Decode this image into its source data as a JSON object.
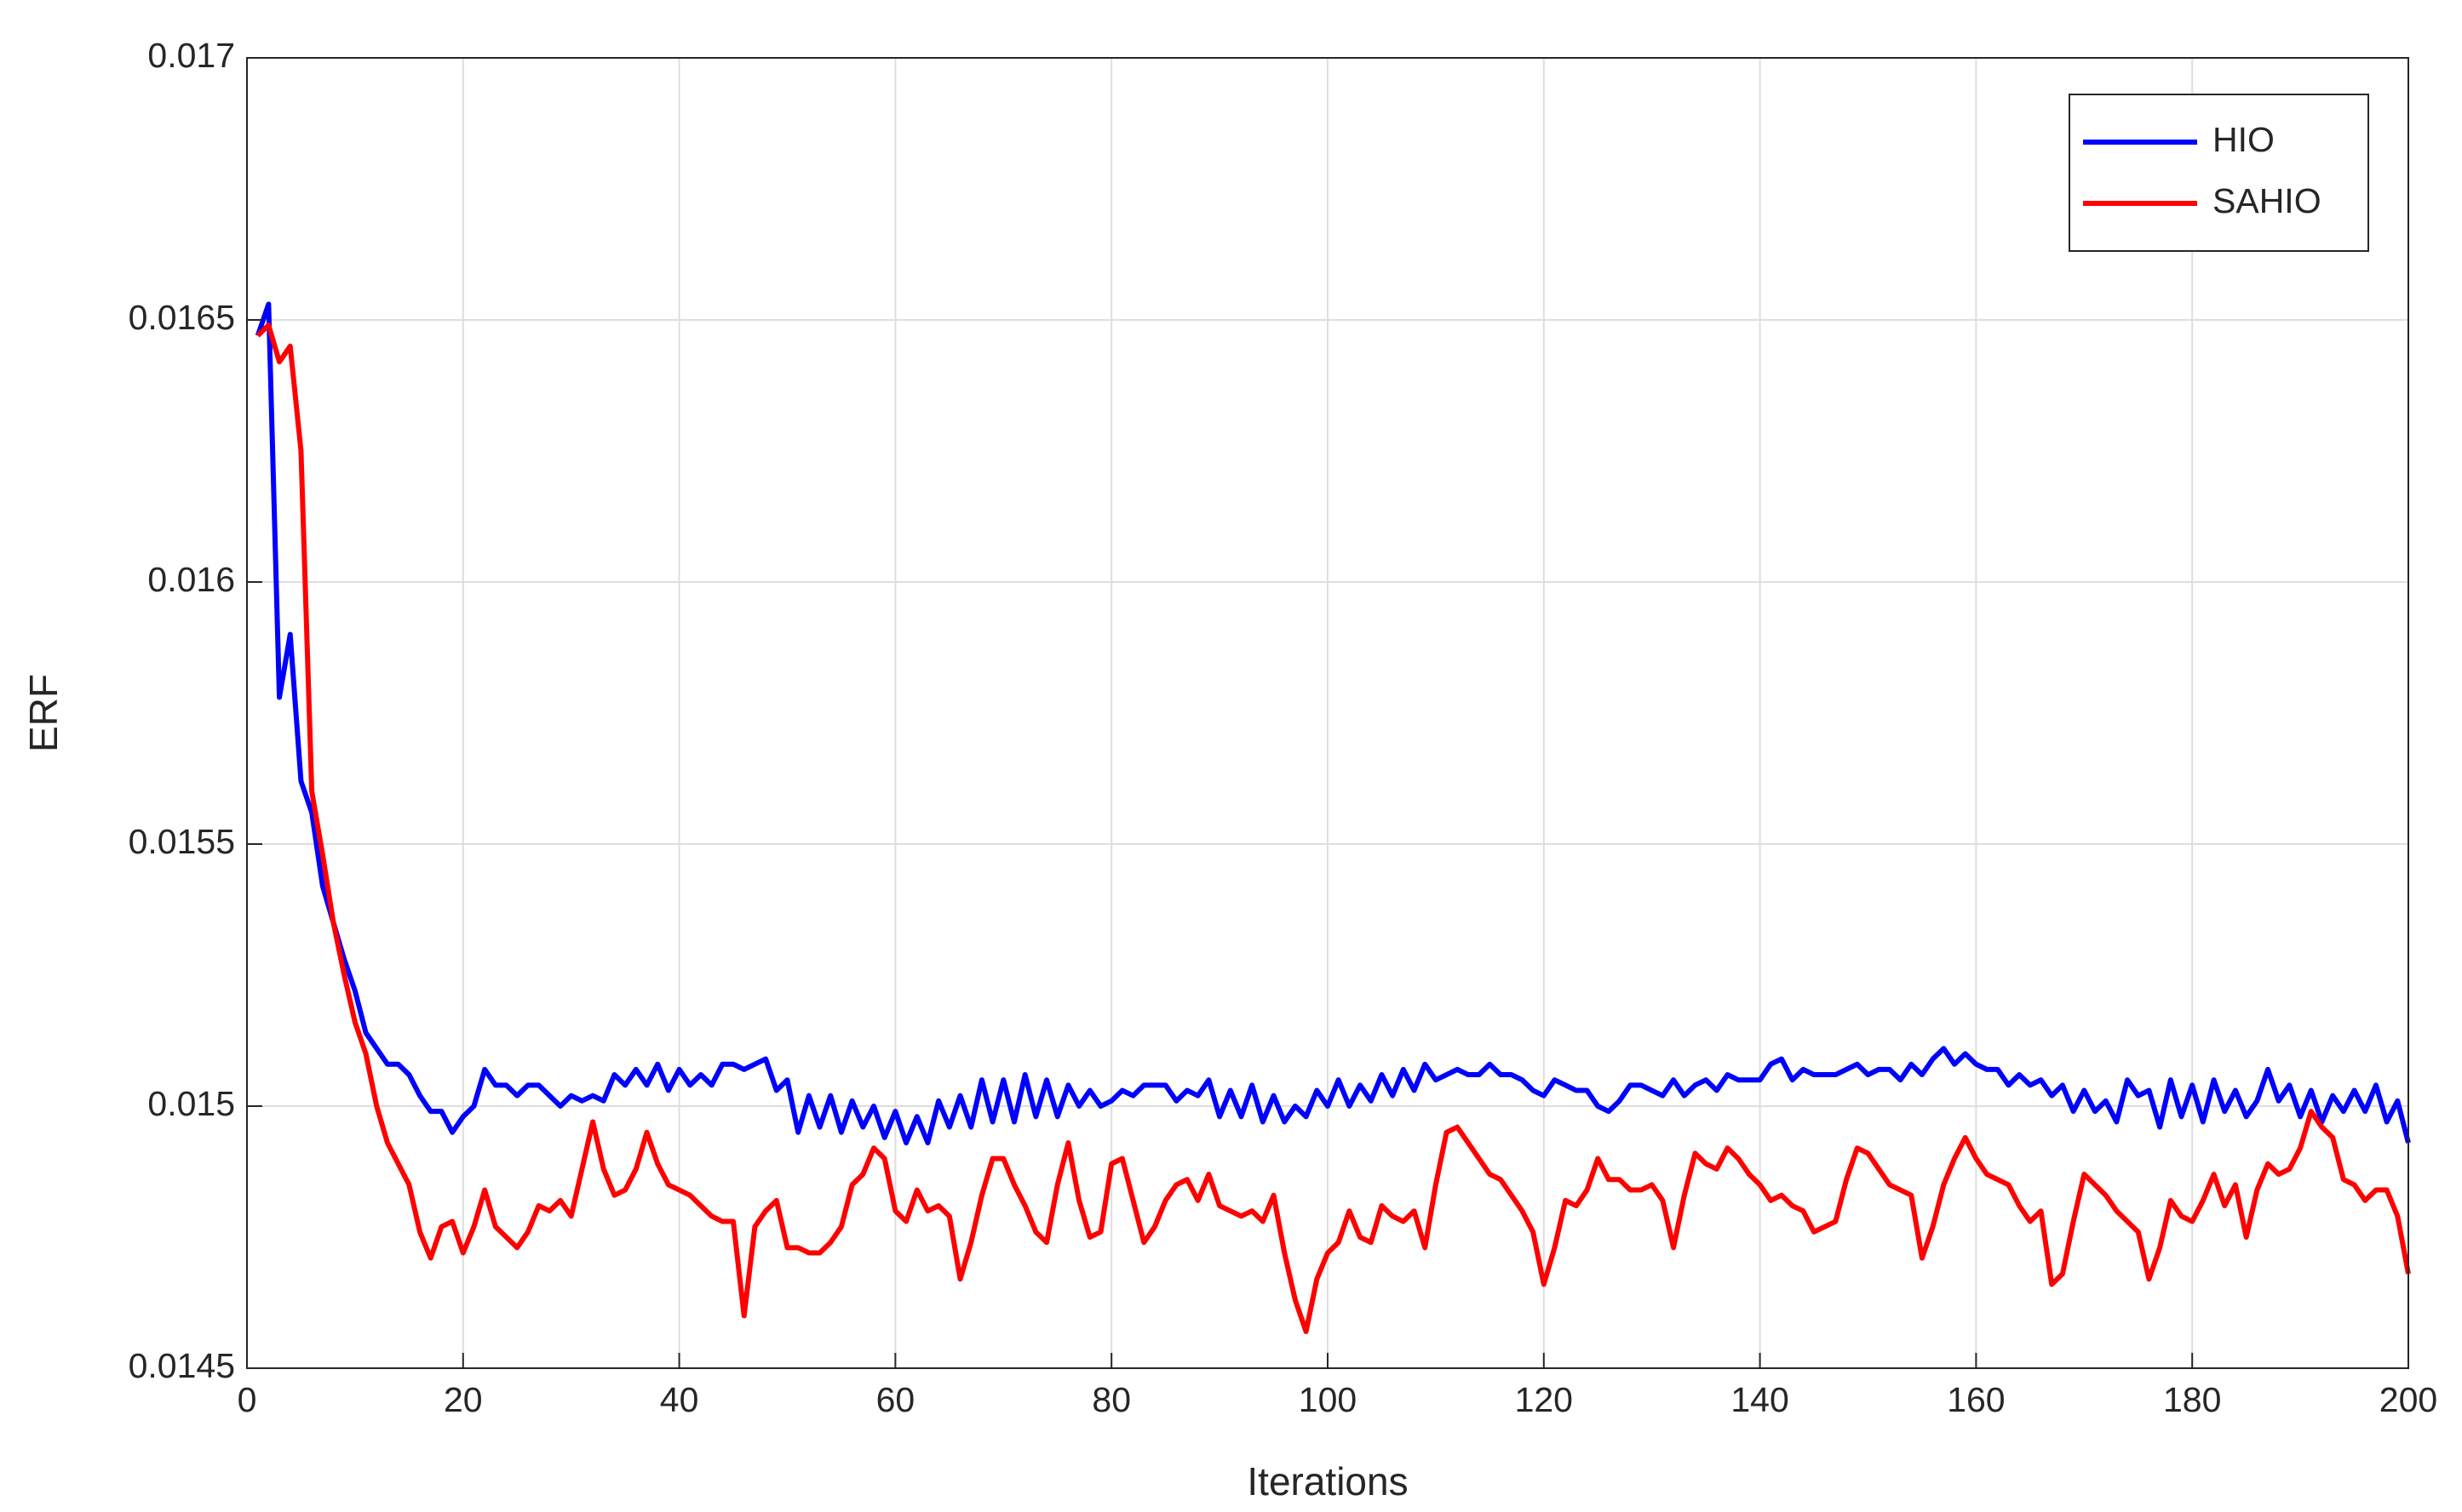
{
  "chart_data": {
    "type": "line",
    "xlabel": "Iterations",
    "ylabel": "ERF",
    "x": [
      1,
      2,
      3,
      4,
      5,
      6,
      7,
      8,
      9,
      10,
      11,
      12,
      13,
      14,
      15,
      16,
      17,
      18,
      19,
      20,
      21,
      22,
      23,
      24,
      25,
      26,
      27,
      28,
      29,
      30,
      31,
      32,
      33,
      34,
      35,
      36,
      37,
      38,
      39,
      40,
      41,
      42,
      43,
      44,
      45,
      46,
      47,
      48,
      49,
      50,
      51,
      52,
      53,
      54,
      55,
      56,
      57,
      58,
      59,
      60,
      61,
      62,
      63,
      64,
      65,
      66,
      67,
      68,
      69,
      70,
      71,
      72,
      73,
      74,
      75,
      76,
      77,
      78,
      79,
      80,
      81,
      82,
      83,
      84,
      85,
      86,
      87,
      88,
      89,
      90,
      91,
      92,
      93,
      94,
      95,
      96,
      97,
      98,
      99,
      100,
      101,
      102,
      103,
      104,
      105,
      106,
      107,
      108,
      109,
      110,
      111,
      112,
      113,
      114,
      115,
      116,
      117,
      118,
      119,
      120,
      121,
      122,
      123,
      124,
      125,
      126,
      127,
      128,
      129,
      130,
      131,
      132,
      133,
      134,
      135,
      136,
      137,
      138,
      139,
      140,
      141,
      142,
      143,
      144,
      145,
      146,
      147,
      148,
      149,
      150,
      151,
      152,
      153,
      154,
      155,
      156,
      157,
      158,
      159,
      160,
      161,
      162,
      163,
      164,
      165,
      166,
      167,
      168,
      169,
      170,
      171,
      172,
      173,
      174,
      175,
      176,
      177,
      178,
      179,
      180,
      181,
      182,
      183,
      184,
      185,
      186,
      187,
      188,
      189,
      190,
      191,
      192,
      193,
      194,
      195,
      196,
      197,
      198,
      199,
      200
    ],
    "series": [
      {
        "name": "HIO",
        "color": "#0000ff",
        "values": [
          0.01647,
          0.01653,
          0.01578,
          0.0159,
          0.01562,
          0.01556,
          0.01542,
          0.01535,
          0.01528,
          0.01522,
          0.01514,
          0.01511,
          0.01508,
          0.01508,
          0.01506,
          0.01502,
          0.01499,
          0.01499,
          0.01495,
          0.01498,
          0.015,
          0.01507,
          0.01504,
          0.01504,
          0.01502,
          0.01504,
          0.01504,
          0.01502,
          0.015,
          0.01502,
          0.01501,
          0.01502,
          0.01501,
          0.01506,
          0.01504,
          0.01507,
          0.01504,
          0.01508,
          0.01503,
          0.01507,
          0.01504,
          0.01506,
          0.01504,
          0.01508,
          0.01508,
          0.01507,
          0.01508,
          0.01509,
          0.01503,
          0.01505,
          0.01495,
          0.01502,
          0.01496,
          0.01502,
          0.01495,
          0.01501,
          0.01496,
          0.015,
          0.01494,
          0.01499,
          0.01493,
          0.01498,
          0.01493,
          0.01501,
          0.01496,
          0.01502,
          0.01496,
          0.01505,
          0.01497,
          0.01505,
          0.01497,
          0.01506,
          0.01498,
          0.01505,
          0.01498,
          0.01504,
          0.015,
          0.01503,
          0.015,
          0.01501,
          0.01503,
          0.01502,
          0.01504,
          0.01504,
          0.01504,
          0.01501,
          0.01503,
          0.01502,
          0.01505,
          0.01498,
          0.01503,
          0.01498,
          0.01504,
          0.01497,
          0.01502,
          0.01497,
          0.015,
          0.01498,
          0.01503,
          0.015,
          0.01505,
          0.015,
          0.01504,
          0.01501,
          0.01506,
          0.01502,
          0.01507,
          0.01503,
          0.01508,
          0.01505,
          0.01506,
          0.01507,
          0.01506,
          0.01506,
          0.01508,
          0.01506,
          0.01506,
          0.01505,
          0.01503,
          0.01502,
          0.01505,
          0.01504,
          0.01503,
          0.01503,
          0.015,
          0.01499,
          0.01501,
          0.01504,
          0.01504,
          0.01503,
          0.01502,
          0.01505,
          0.01502,
          0.01504,
          0.01505,
          0.01503,
          0.01506,
          0.01505,
          0.01505,
          0.01505,
          0.01508,
          0.01509,
          0.01505,
          0.01507,
          0.01506,
          0.01506,
          0.01506,
          0.01507,
          0.01508,
          0.01506,
          0.01507,
          0.01507,
          0.01505,
          0.01508,
          0.01506,
          0.01509,
          0.01511,
          0.01508,
          0.0151,
          0.01508,
          0.01507,
          0.01507,
          0.01504,
          0.01506,
          0.01504,
          0.01505,
          0.01502,
          0.01504,
          0.01499,
          0.01503,
          0.01499,
          0.01501,
          0.01497,
          0.01505,
          0.01502,
          0.01503,
          0.01496,
          0.01505,
          0.01498,
          0.01504,
          0.01497,
          0.01505,
          0.01499,
          0.01503,
          0.01498,
          0.01501,
          0.01507,
          0.01501,
          0.01504,
          0.01498,
          0.01503,
          0.01497,
          0.01502,
          0.01499,
          0.01503,
          0.01499,
          0.01504,
          0.01497,
          0.01501,
          0.01493
        ]
      },
      {
        "name": "SAHIO",
        "color": "#ff0000",
        "values": [
          0.01647,
          0.01649,
          0.01642,
          0.01645,
          0.01625,
          0.0156,
          0.01548,
          0.01535,
          0.01525,
          0.01516,
          0.0151,
          0.015,
          0.01493,
          0.01489,
          0.01485,
          0.01476,
          0.01471,
          0.01477,
          0.01478,
          0.01472,
          0.01477,
          0.01484,
          0.01477,
          0.01475,
          0.01473,
          0.01476,
          0.01481,
          0.0148,
          0.01482,
          0.01479,
          0.01488,
          0.01497,
          0.01488,
          0.01483,
          0.01484,
          0.01488,
          0.01495,
          0.01489,
          0.01485,
          0.01484,
          0.01483,
          0.01481,
          0.01479,
          0.01478,
          0.01478,
          0.0146,
          0.01477,
          0.0148,
          0.01482,
          0.01473,
          0.01473,
          0.01472,
          0.01472,
          0.01474,
          0.01477,
          0.01485,
          0.01487,
          0.01492,
          0.0149,
          0.0148,
          0.01478,
          0.01484,
          0.0148,
          0.01481,
          0.01479,
          0.01467,
          0.01474,
          0.01483,
          0.0149,
          0.0149,
          0.01485,
          0.01481,
          0.01476,
          0.01474,
          0.01485,
          0.01493,
          0.01482,
          0.01475,
          0.01476,
          0.01489,
          0.0149,
          0.01482,
          0.01474,
          0.01477,
          0.01482,
          0.01485,
          0.01486,
          0.01482,
          0.01487,
          0.01481,
          0.0148,
          0.01479,
          0.0148,
          0.01478,
          0.01483,
          0.01472,
          0.01463,
          0.01457,
          0.01467,
          0.01472,
          0.01474,
          0.0148,
          0.01475,
          0.01474,
          0.01481,
          0.01479,
          0.01478,
          0.0148,
          0.01473,
          0.01485,
          0.01495,
          0.01496,
          0.01493,
          0.0149,
          0.01487,
          0.01486,
          0.01483,
          0.0148,
          0.01476,
          0.01466,
          0.01473,
          0.01482,
          0.01481,
          0.01484,
          0.0149,
          0.01486,
          0.01486,
          0.01484,
          0.01484,
          0.01485,
          0.01482,
          0.01473,
          0.01483,
          0.01491,
          0.01489,
          0.01488,
          0.01492,
          0.0149,
          0.01487,
          0.01485,
          0.01482,
          0.01483,
          0.01481,
          0.0148,
          0.01476,
          0.01477,
          0.01478,
          0.01486,
          0.01492,
          0.01491,
          0.01488,
          0.01485,
          0.01484,
          0.01483,
          0.01471,
          0.01477,
          0.01485,
          0.0149,
          0.01494,
          0.0149,
          0.01487,
          0.01486,
          0.01485,
          0.01481,
          0.01478,
          0.0148,
          0.01466,
          0.01468,
          0.01478,
          0.01487,
          0.01485,
          0.01483,
          0.0148,
          0.01478,
          0.01476,
          0.01467,
          0.01473,
          0.01482,
          0.01479,
          0.01478,
          0.01482,
          0.01487,
          0.01481,
          0.01485,
          0.01475,
          0.01484,
          0.01489,
          0.01487,
          0.01488,
          0.01492,
          0.01499,
          0.01496,
          0.01494,
          0.01486,
          0.01485,
          0.01482,
          0.01484,
          0.01484,
          0.01479,
          0.01468
        ]
      }
    ],
    "xlim": [
      0,
      200
    ],
    "xticks": [
      0,
      20,
      40,
      60,
      80,
      100,
      120,
      140,
      160,
      180,
      200
    ],
    "ylim": [
      0.0145,
      0.017
    ],
    "yticks": [
      0.0145,
      0.015,
      0.0155,
      0.016,
      0.0165,
      0.017
    ],
    "grid": true,
    "legend": "upper right"
  }
}
